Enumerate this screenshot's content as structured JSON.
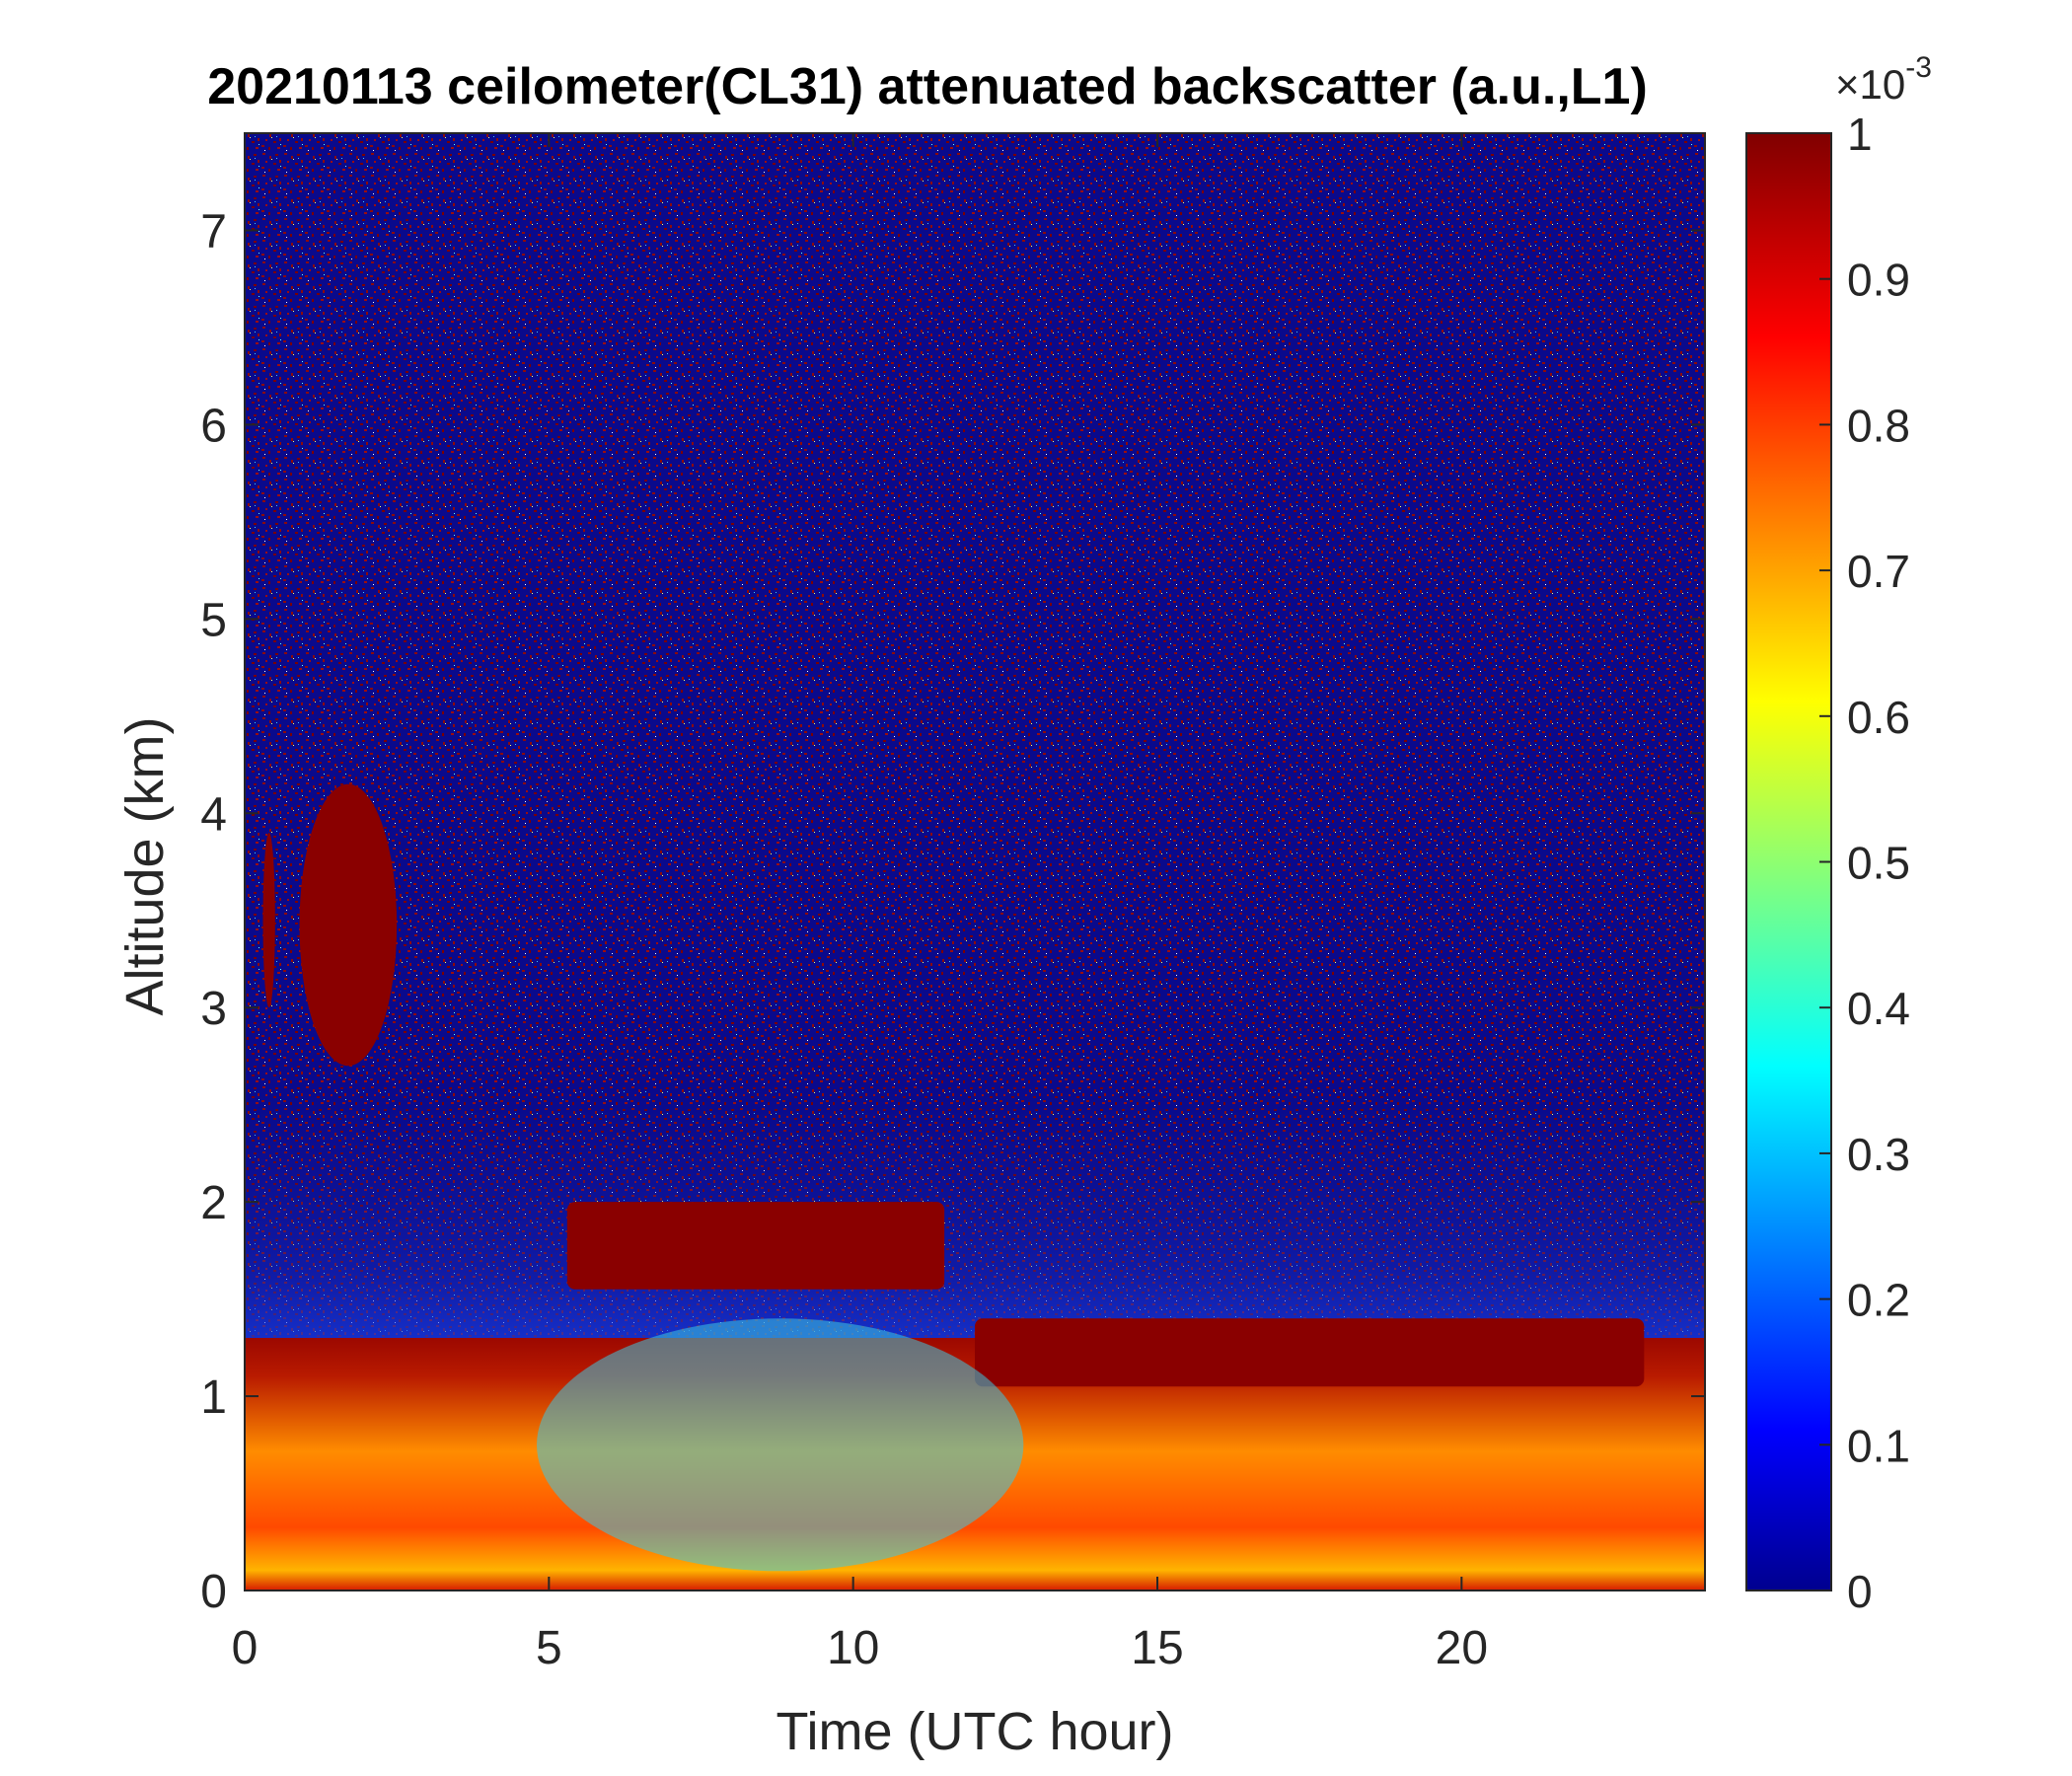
{
  "chart_data": {
    "type": "heatmap",
    "title": "20210113 ceilometer(CL31) attenuated backscatter (a.u.,L1)",
    "xlabel": "Time (UTC hour)",
    "ylabel": "Altitude (km)",
    "xlim": [
      0,
      24
    ],
    "ylim": [
      0,
      7.5
    ],
    "x_ticks": [
      "0",
      "5",
      "10",
      "15",
      "20"
    ],
    "x_tick_values": [
      0,
      5,
      10,
      15,
      20
    ],
    "y_ticks": [
      "0",
      "1",
      "2",
      "3",
      "4",
      "5",
      "6",
      "7"
    ],
    "y_tick_values": [
      0,
      1,
      2,
      3,
      4,
      5,
      6,
      7
    ],
    "colorbar": {
      "colormap": "jet",
      "clim": [
        0,
        1
      ],
      "multiplier_base": "×10",
      "multiplier_exponent": "-3",
      "tick_labels": [
        "0",
        "0.1",
        "0.2",
        "0.3",
        "0.4",
        "0.5",
        "0.6",
        "0.7",
        "0.8",
        "0.9",
        "1"
      ],
      "tick_values": [
        0,
        0.1,
        0.2,
        0.3,
        0.4,
        0.5,
        0.6,
        0.7,
        0.8,
        0.9,
        1.0
      ]
    },
    "features": [
      {
        "kind": "aerosol_boundary_layer",
        "t_start": 0,
        "t_end": 24,
        "top_km": 1.3
      },
      {
        "kind": "cloud_layer",
        "t_start": 5.3,
        "t_end": 11.5,
        "base_km": 1.55,
        "top_km": 2.0
      },
      {
        "kind": "cloud_layer",
        "t_start": 12.0,
        "t_end": 23.0,
        "base_km": 1.05,
        "top_km": 1.4
      },
      {
        "kind": "mid_level_cloud",
        "t_start": 0.9,
        "t_end": 2.5,
        "base_km": 2.7,
        "top_km": 4.15
      },
      {
        "kind": "mid_level_cloud",
        "t_start": 0.3,
        "t_end": 0.5,
        "base_km": 3.0,
        "top_km": 3.9
      }
    ]
  }
}
